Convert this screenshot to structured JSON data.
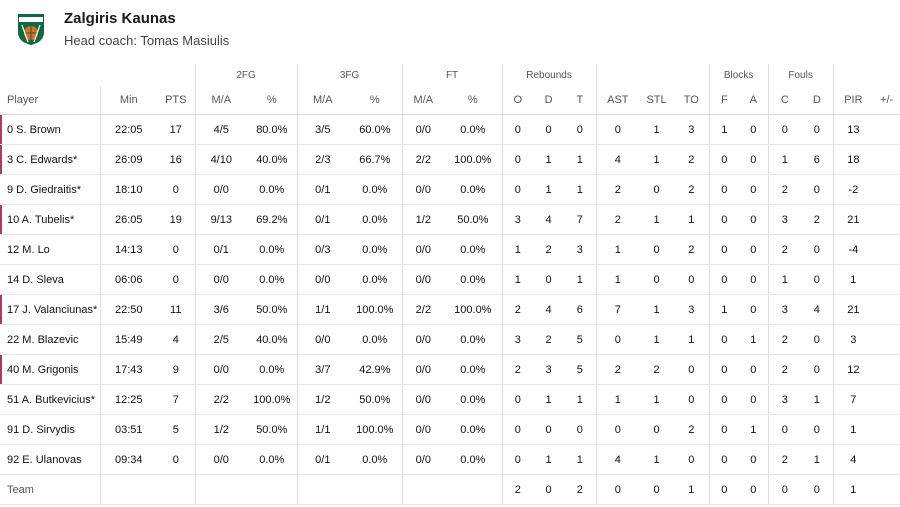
{
  "team": {
    "name": "Zalgiris Kaunas",
    "coach_label": "Head coach: Tomas Masiulis",
    "logo_text": "ZALGIRIS"
  },
  "colors": {
    "logo_green": "#0d6b3e",
    "logo_orange": "#e06a26",
    "starter_marker": "#b03a5b"
  },
  "groups": {
    "fg2": "2FG",
    "fg3": "3FG",
    "ft": "FT",
    "rebounds": "Rebounds",
    "blocks": "Blocks",
    "fouls": "Fouls"
  },
  "columns": {
    "player": "Player",
    "min": "Min",
    "pts": "PTS",
    "fg2_ma": "M/A",
    "fg2_pct": "%",
    "fg3_ma": "M/A",
    "fg3_pct": "%",
    "ft_ma": "M/A",
    "ft_pct": "%",
    "reb_o": "O",
    "reb_d": "D",
    "reb_t": "T",
    "ast": "AST",
    "stl": "STL",
    "to": "TO",
    "blk_f": "F",
    "blk_a": "A",
    "foul_c": "C",
    "foul_d": "D",
    "pir": "PIR",
    "pm": "+/-"
  },
  "players": [
    {
      "name": "0 S. Brown",
      "starter": true,
      "min": "22:05",
      "pts": "17",
      "fg2_ma": "4/5",
      "fg2_pct": "80.0%",
      "fg3_ma": "3/5",
      "fg3_pct": "60.0%",
      "ft_ma": "0/0",
      "ft_pct": "0.0%",
      "reb_o": "0",
      "reb_d": "0",
      "reb_t": "0",
      "ast": "0",
      "stl": "1",
      "to": "3",
      "blk_f": "1",
      "blk_a": "0",
      "foul_c": "0",
      "foul_d": "0",
      "pir": "13",
      "pm": ""
    },
    {
      "name": "3 C. Edwards*",
      "starter": true,
      "min": "26:09",
      "pts": "16",
      "fg2_ma": "4/10",
      "fg2_pct": "40.0%",
      "fg3_ma": "2/3",
      "fg3_pct": "66.7%",
      "ft_ma": "2/2",
      "ft_pct": "100.0%",
      "reb_o": "0",
      "reb_d": "1",
      "reb_t": "1",
      "ast": "4",
      "stl": "1",
      "to": "2",
      "blk_f": "0",
      "blk_a": "0",
      "foul_c": "1",
      "foul_d": "6",
      "pir": "18",
      "pm": ""
    },
    {
      "name": "9 D. Giedraitis*",
      "starter": false,
      "min": "18:10",
      "pts": "0",
      "fg2_ma": "0/0",
      "fg2_pct": "0.0%",
      "fg3_ma": "0/1",
      "fg3_pct": "0.0%",
      "ft_ma": "0/0",
      "ft_pct": "0.0%",
      "reb_o": "0",
      "reb_d": "1",
      "reb_t": "1",
      "ast": "2",
      "stl": "0",
      "to": "2",
      "blk_f": "0",
      "blk_a": "0",
      "foul_c": "2",
      "foul_d": "0",
      "pir": "-2",
      "pm": ""
    },
    {
      "name": "10 A. Tubelis*",
      "starter": true,
      "min": "26:05",
      "pts": "19",
      "fg2_ma": "9/13",
      "fg2_pct": "69.2%",
      "fg3_ma": "0/1",
      "fg3_pct": "0.0%",
      "ft_ma": "1/2",
      "ft_pct": "50.0%",
      "reb_o": "3",
      "reb_d": "4",
      "reb_t": "7",
      "ast": "2",
      "stl": "1",
      "to": "1",
      "blk_f": "0",
      "blk_a": "0",
      "foul_c": "3",
      "foul_d": "2",
      "pir": "21",
      "pm": ""
    },
    {
      "name": "12 M. Lo",
      "starter": false,
      "min": "14:13",
      "pts": "0",
      "fg2_ma": "0/1",
      "fg2_pct": "0.0%",
      "fg3_ma": "0/3",
      "fg3_pct": "0.0%",
      "ft_ma": "0/0",
      "ft_pct": "0.0%",
      "reb_o": "1",
      "reb_d": "2",
      "reb_t": "3",
      "ast": "1",
      "stl": "0",
      "to": "2",
      "blk_f": "0",
      "blk_a": "0",
      "foul_c": "2",
      "foul_d": "0",
      "pir": "-4",
      "pm": ""
    },
    {
      "name": "14 D. Sleva",
      "starter": false,
      "min": "06:06",
      "pts": "0",
      "fg2_ma": "0/0",
      "fg2_pct": "0.0%",
      "fg3_ma": "0/0",
      "fg3_pct": "0.0%",
      "ft_ma": "0/0",
      "ft_pct": "0.0%",
      "reb_o": "1",
      "reb_d": "0",
      "reb_t": "1",
      "ast": "1",
      "stl": "0",
      "to": "0",
      "blk_f": "0",
      "blk_a": "0",
      "foul_c": "1",
      "foul_d": "0",
      "pir": "1",
      "pm": ""
    },
    {
      "name": "17 J. Valanciunas*",
      "starter": true,
      "min": "22:50",
      "pts": "11",
      "fg2_ma": "3/6",
      "fg2_pct": "50.0%",
      "fg3_ma": "1/1",
      "fg3_pct": "100.0%",
      "ft_ma": "2/2",
      "ft_pct": "100.0%",
      "reb_o": "2",
      "reb_d": "4",
      "reb_t": "6",
      "ast": "7",
      "stl": "1",
      "to": "3",
      "blk_f": "1",
      "blk_a": "0",
      "foul_c": "3",
      "foul_d": "4",
      "pir": "21",
      "pm": ""
    },
    {
      "name": "22 M. Blazevic",
      "starter": false,
      "min": "15:49",
      "pts": "4",
      "fg2_ma": "2/5",
      "fg2_pct": "40.0%",
      "fg3_ma": "0/0",
      "fg3_pct": "0.0%",
      "ft_ma": "0/0",
      "ft_pct": "0.0%",
      "reb_o": "3",
      "reb_d": "2",
      "reb_t": "5",
      "ast": "0",
      "stl": "1",
      "to": "1",
      "blk_f": "0",
      "blk_a": "1",
      "foul_c": "2",
      "foul_d": "0",
      "pir": "3",
      "pm": ""
    },
    {
      "name": "40 M. Grigonis",
      "starter": true,
      "min": "17:43",
      "pts": "9",
      "fg2_ma": "0/0",
      "fg2_pct": "0.0%",
      "fg3_ma": "3/7",
      "fg3_pct": "42.9%",
      "ft_ma": "0/0",
      "ft_pct": "0.0%",
      "reb_o": "2",
      "reb_d": "3",
      "reb_t": "5",
      "ast": "2",
      "stl": "2",
      "to": "0",
      "blk_f": "0",
      "blk_a": "0",
      "foul_c": "2",
      "foul_d": "0",
      "pir": "12",
      "pm": ""
    },
    {
      "name": "51 A. Butkevicius*",
      "starter": false,
      "min": "12:25",
      "pts": "7",
      "fg2_ma": "2/2",
      "fg2_pct": "100.0%",
      "fg3_ma": "1/2",
      "fg3_pct": "50.0%",
      "ft_ma": "0/0",
      "ft_pct": "0.0%",
      "reb_o": "0",
      "reb_d": "1",
      "reb_t": "1",
      "ast": "1",
      "stl": "1",
      "to": "0",
      "blk_f": "0",
      "blk_a": "0",
      "foul_c": "3",
      "foul_d": "1",
      "pir": "7",
      "pm": ""
    },
    {
      "name": "91 D. Sirvydis",
      "starter": false,
      "min": "03:51",
      "pts": "5",
      "fg2_ma": "1/2",
      "fg2_pct": "50.0%",
      "fg3_ma": "1/1",
      "fg3_pct": "100.0%",
      "ft_ma": "0/0",
      "ft_pct": "0.0%",
      "reb_o": "0",
      "reb_d": "0",
      "reb_t": "0",
      "ast": "0",
      "stl": "0",
      "to": "2",
      "blk_f": "0",
      "blk_a": "1",
      "foul_c": "0",
      "foul_d": "0",
      "pir": "1",
      "pm": ""
    },
    {
      "name": "92 E. Ulanovas",
      "starter": false,
      "min": "09:34",
      "pts": "0",
      "fg2_ma": "0/0",
      "fg2_pct": "0.0%",
      "fg3_ma": "0/1",
      "fg3_pct": "0.0%",
      "ft_ma": "0/0",
      "ft_pct": "0.0%",
      "reb_o": "0",
      "reb_d": "1",
      "reb_t": "1",
      "ast": "4",
      "stl": "1",
      "to": "0",
      "blk_f": "0",
      "blk_a": "0",
      "foul_c": "2",
      "foul_d": "1",
      "pir": "4",
      "pm": ""
    }
  ],
  "team_row": {
    "name": "Team",
    "min": "",
    "pts": "",
    "fg2_ma": "",
    "fg2_pct": "",
    "fg3_ma": "",
    "fg3_pct": "",
    "ft_ma": "",
    "ft_pct": "",
    "reb_o": "2",
    "reb_d": "0",
    "reb_t": "2",
    "ast": "0",
    "stl": "0",
    "to": "1",
    "blk_f": "0",
    "blk_a": "0",
    "foul_c": "0",
    "foul_d": "0",
    "pir": "1",
    "pm": ""
  }
}
